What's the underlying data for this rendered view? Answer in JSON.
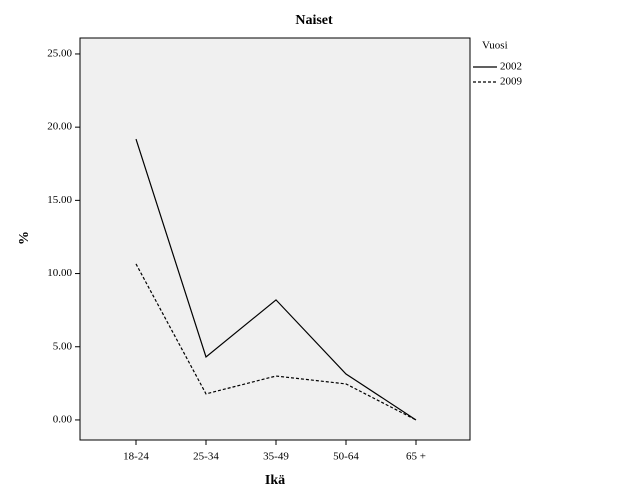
{
  "chart_data": {
    "type": "line",
    "title": "Naiset",
    "x_label": "Ikä",
    "y_label": "%",
    "categories": [
      "18-24",
      "25-34",
      "35-49",
      "50-64",
      "65 +"
    ],
    "series": [
      {
        "name": "2002",
        "color": "#000000",
        "style": "solid",
        "values": [
          19.19,
          4.3,
          8.2,
          3.14,
          0
        ]
      },
      {
        "name": "2009",
        "color": "#000000",
        "style": "dashed",
        "values": [
          10.66,
          1.78,
          3.0,
          2.46,
          0
        ]
      }
    ],
    "ylim": [
      -1.37,
      26.09
    ],
    "yticks": [
      {
        "value": 0,
        "label": "0.00"
      },
      {
        "value": 5,
        "label": "5.00"
      },
      {
        "value": 10,
        "label": "10.00"
      },
      {
        "value": 15,
        "label": "15.00"
      },
      {
        "value": 20,
        "label": "20.00"
      },
      {
        "value": 25,
        "label": "25.00"
      }
    ],
    "legend_title": "Vuosi",
    "legend_position": "right",
    "grid": false
  }
}
